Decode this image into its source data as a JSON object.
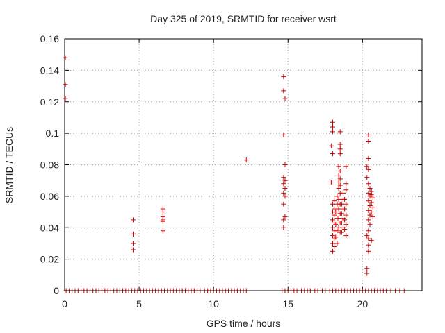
{
  "chart_data": {
    "type": "scatter",
    "title": "Day 325 of 2019, SRMTID for receiver wsrt",
    "xlabel": "GPS time / hours",
    "ylabel": "SRMTID / TECUs",
    "xlim": [
      0,
      24
    ],
    "ylim": [
      0,
      0.16
    ],
    "xticks": [
      0,
      5,
      10,
      15,
      20
    ],
    "yticks": [
      0,
      0.02,
      0.04,
      0.06,
      0.08,
      0.1,
      0.12,
      0.14,
      0.16
    ],
    "ytick_labels": [
      "0",
      "0.02",
      "0.04",
      "0.06",
      "0.08",
      "0.1",
      "0.12",
      "0.14",
      "0.16"
    ],
    "xtick_labels": [
      "0",
      "5",
      "10",
      "15",
      "20"
    ],
    "grid": true,
    "marker": "+",
    "color": "#cc0000",
    "series": [
      {
        "points": [
          [
            0.05,
            0.148
          ],
          [
            0.05,
            0.131
          ],
          [
            0.05,
            0.122
          ],
          [
            4.6,
            0.045
          ],
          [
            4.6,
            0.036
          ],
          [
            4.6,
            0.03
          ],
          [
            4.6,
            0.026
          ],
          [
            6.6,
            0.052
          ],
          [
            6.6,
            0.05
          ],
          [
            6.6,
            0.047
          ],
          [
            6.6,
            0.045
          ],
          [
            6.6,
            0.044
          ],
          [
            6.6,
            0.038
          ],
          [
            12.2,
            0.083
          ],
          [
            14.7,
            0.136
          ],
          [
            14.7,
            0.127
          ],
          [
            14.8,
            0.122
          ],
          [
            14.7,
            0.099
          ],
          [
            14.8,
            0.08
          ],
          [
            14.7,
            0.072
          ],
          [
            14.8,
            0.07
          ],
          [
            14.7,
            0.068
          ],
          [
            14.8,
            0.065
          ],
          [
            14.7,
            0.062
          ],
          [
            14.8,
            0.06
          ],
          [
            14.7,
            0.055
          ],
          [
            14.8,
            0.047
          ],
          [
            14.7,
            0.045
          ],
          [
            14.7,
            0.04
          ],
          [
            18.0,
            0.107
          ],
          [
            18.0,
            0.104
          ],
          [
            18.0,
            0.101
          ],
          [
            17.9,
            0.092
          ],
          [
            18.0,
            0.087
          ],
          [
            17.9,
            0.069
          ],
          [
            18.1,
            0.057
          ],
          [
            18.0,
            0.055
          ],
          [
            18.1,
            0.052
          ],
          [
            18.0,
            0.05
          ],
          [
            18.1,
            0.048
          ],
          [
            18.0,
            0.045
          ],
          [
            18.1,
            0.043
          ],
          [
            18.0,
            0.04
          ],
          [
            18.1,
            0.038
          ],
          [
            18.0,
            0.035
          ],
          [
            18.1,
            0.033
          ],
          [
            18.0,
            0.03
          ],
          [
            18.1,
            0.028
          ],
          [
            18.0,
            0.025
          ],
          [
            18.3,
            0.06
          ],
          [
            18.3,
            0.055
          ],
          [
            18.2,
            0.05
          ],
          [
            18.3,
            0.046
          ],
          [
            18.2,
            0.042
          ],
          [
            18.3,
            0.038
          ],
          [
            18.2,
            0.034
          ],
          [
            18.3,
            0.03
          ],
          [
            18.5,
            0.101
          ],
          [
            18.5,
            0.093
          ],
          [
            18.5,
            0.09
          ],
          [
            18.5,
            0.087
          ],
          [
            18.4,
            0.079
          ],
          [
            18.5,
            0.076
          ],
          [
            18.4,
            0.073
          ],
          [
            18.5,
            0.071
          ],
          [
            18.4,
            0.069
          ],
          [
            18.5,
            0.067
          ],
          [
            18.4,
            0.065
          ],
          [
            18.5,
            0.062
          ],
          [
            18.4,
            0.058
          ],
          [
            18.5,
            0.055
          ],
          [
            18.4,
            0.052
          ],
          [
            18.5,
            0.049
          ],
          [
            18.4,
            0.046
          ],
          [
            18.5,
            0.043
          ],
          [
            18.4,
            0.04
          ],
          [
            18.5,
            0.037
          ],
          [
            18.7,
            0.062
          ],
          [
            18.7,
            0.058
          ],
          [
            18.6,
            0.055
          ],
          [
            18.7,
            0.052
          ],
          [
            18.6,
            0.049
          ],
          [
            18.7,
            0.046
          ],
          [
            18.6,
            0.043
          ],
          [
            18.7,
            0.04
          ],
          [
            18.6,
            0.037
          ],
          [
            18.9,
            0.079
          ],
          [
            18.9,
            0.068
          ],
          [
            18.9,
            0.064
          ],
          [
            18.8,
            0.058
          ],
          [
            18.9,
            0.055
          ],
          [
            18.8,
            0.052
          ],
          [
            18.9,
            0.048
          ],
          [
            18.8,
            0.045
          ],
          [
            18.9,
            0.042
          ],
          [
            18.8,
            0.039
          ],
          [
            18.9,
            0.035
          ],
          [
            20.4,
            0.099
          ],
          [
            20.4,
            0.095
          ],
          [
            20.4,
            0.084
          ],
          [
            20.3,
            0.079
          ],
          [
            20.4,
            0.077
          ],
          [
            20.3,
            0.072
          ],
          [
            20.4,
            0.068
          ],
          [
            20.5,
            0.065
          ],
          [
            20.4,
            0.062
          ],
          [
            20.5,
            0.06
          ],
          [
            20.4,
            0.057
          ],
          [
            20.5,
            0.054
          ],
          [
            20.4,
            0.051
          ],
          [
            20.5,
            0.048
          ],
          [
            20.4,
            0.045
          ],
          [
            20.5,
            0.042
          ],
          [
            20.4,
            0.038
          ],
          [
            20.3,
            0.035
          ],
          [
            20.4,
            0.033
          ],
          [
            20.6,
            0.032
          ],
          [
            20.4,
            0.029
          ],
          [
            20.4,
            0.025
          ],
          [
            20.3,
            0.014
          ],
          [
            20.3,
            0.011
          ],
          [
            20.6,
            0.063
          ],
          [
            20.6,
            0.061
          ],
          [
            20.7,
            0.059
          ],
          [
            20.6,
            0.056
          ],
          [
            20.7,
            0.053
          ],
          [
            20.6,
            0.05
          ],
          [
            20.7,
            0.047
          ]
        ],
        "zero_points_x": [
          0.1,
          0.3,
          0.5,
          0.7,
          0.9,
          1.1,
          1.3,
          1.5,
          1.7,
          1.9,
          2.1,
          2.3,
          2.5,
          2.7,
          2.9,
          3.1,
          3.3,
          3.5,
          3.7,
          3.9,
          4.1,
          4.3,
          4.5,
          4.7,
          4.9,
          5.1,
          5.3,
          5.5,
          5.7,
          5.9,
          6.1,
          6.3,
          6.5,
          6.7,
          6.9,
          7.1,
          7.3,
          7.5,
          7.7,
          7.9,
          8.1,
          8.3,
          8.5,
          8.7,
          8.9,
          9.1,
          9.4,
          9.6,
          9.8,
          10.0,
          10.2,
          10.4,
          10.6,
          10.8,
          11.0,
          11.2,
          11.4,
          11.6,
          11.8,
          12.0,
          12.2,
          14.6,
          14.8,
          15.0,
          15.2,
          15.4,
          15.6,
          15.9,
          16.1,
          16.3,
          16.5,
          16.8,
          17.0,
          17.3,
          17.5,
          17.8,
          18.0,
          18.2,
          18.4,
          18.6,
          18.8,
          19.0,
          19.2,
          19.4,
          19.6,
          19.8,
          20.0,
          20.2,
          20.4,
          20.6,
          20.8,
          21.0,
          21.2,
          21.4,
          21.6,
          21.9,
          22.2,
          22.5,
          22.8
        ]
      }
    ]
  }
}
